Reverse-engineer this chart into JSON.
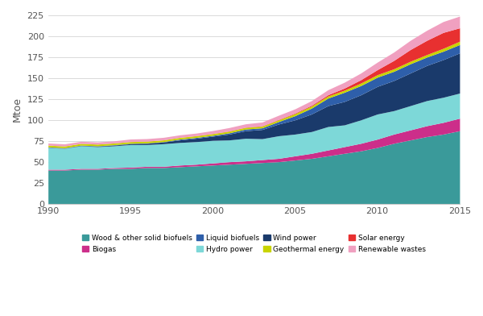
{
  "years": [
    1990,
    1991,
    1992,
    1993,
    1994,
    1995,
    1996,
    1997,
    1998,
    1999,
    2000,
    2001,
    2002,
    2003,
    2004,
    2005,
    2006,
    2007,
    2008,
    2009,
    2010,
    2011,
    2012,
    2013,
    2014,
    2015
  ],
  "wood_solid": [
    40,
    40,
    41,
    41,
    42,
    42,
    43,
    43,
    44,
    45,
    46,
    47,
    48,
    49,
    50,
    52,
    54,
    57,
    60,
    63,
    67,
    72,
    76,
    80,
    83,
    87
  ],
  "biogas": [
    1,
    1,
    1,
    1,
    1,
    1.5,
    1.5,
    1.5,
    2,
    2,
    2.5,
    3,
    3,
    3.5,
    4,
    5,
    6,
    7,
    8,
    9,
    10,
    11,
    12,
    13,
    14,
    15
  ],
  "hydro": [
    26,
    25,
    27,
    26,
    26,
    27,
    26,
    27,
    27,
    27,
    27,
    26,
    27,
    25,
    27,
    26,
    26,
    28,
    26,
    28,
    30,
    28,
    29,
    30,
    30,
    30
  ],
  "wind": [
    0.2,
    0.2,
    0.3,
    0.5,
    0.8,
    1,
    1.5,
    2,
    3,
    4,
    5,
    7,
    9,
    11,
    14,
    17,
    21,
    25,
    28,
    30,
    33,
    36,
    39,
    42,
    45,
    48
  ],
  "liquid_biofuels": [
    0.5,
    0.5,
    0.5,
    0.5,
    0.5,
    0.5,
    0.5,
    0.5,
    1,
    1,
    1,
    1.5,
    2,
    2,
    3,
    5,
    7,
    9,
    11,
    11,
    11,
    11,
    11,
    10,
    10,
    10
  ],
  "geothermal": [
    2,
    2,
    2,
    2,
    2,
    2,
    2,
    2,
    2,
    2,
    2,
    2,
    2,
    2,
    2,
    2.5,
    2.5,
    2.5,
    2.5,
    3,
    3,
    3,
    3,
    3,
    3.5,
    4
  ],
  "solar": [
    0.1,
    0.1,
    0.1,
    0.1,
    0.1,
    0.1,
    0.1,
    0.1,
    0.1,
    0.2,
    0.2,
    0.3,
    0.3,
    0.4,
    0.5,
    0.7,
    1,
    1.5,
    2.5,
    4,
    6,
    10,
    14,
    17,
    19,
    16
  ],
  "renewable_wastes": [
    2.5,
    2.5,
    2.5,
    2.5,
    2.5,
    3,
    3,
    3,
    3,
    3,
    3.5,
    4,
    4,
    4.5,
    5,
    5,
    5.5,
    6,
    7,
    8,
    9,
    10,
    11,
    12,
    13,
    14
  ],
  "stack_colors": [
    "#3A9A9A",
    "#CC2E8A",
    "#7DD8D8",
    "#1A3A6B",
    "#2E5FAA",
    "#C8D400",
    "#E83030",
    "#F0A0C0"
  ],
  "stack_labels": [
    "Wood & other solid biofuels",
    "Biogas",
    "Hydro power",
    "Wind power",
    "Liquid biofuels",
    "Geothermal energy",
    "Solar energy",
    "Renewable wastes"
  ],
  "legend_order_row1": [
    0,
    1,
    4,
    2
  ],
  "legend_order_row2": [
    3,
    5,
    6,
    7
  ],
  "ylabel": "Mtoe",
  "ylim": [
    0,
    225
  ],
  "yticks": [
    0,
    25,
    50,
    75,
    100,
    125,
    150,
    175,
    200,
    225
  ],
  "xlim": [
    1990,
    2015
  ],
  "xticks": [
    1990,
    1995,
    2000,
    2005,
    2010,
    2015
  ]
}
